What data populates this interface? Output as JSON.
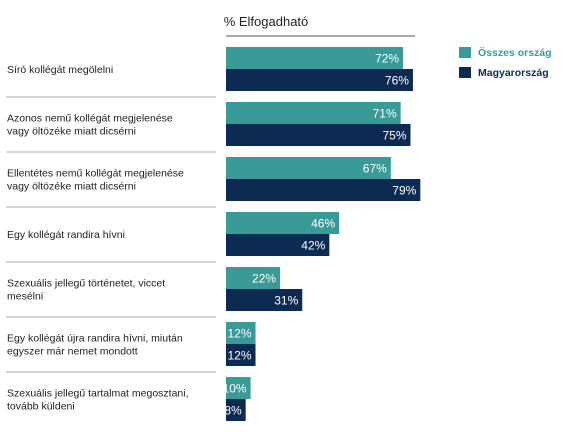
{
  "chart_data": {
    "type": "bar",
    "orientation": "horizontal",
    "title": "% Elfogadható",
    "categories": [
      [
        "Síró kollégát megölelni"
      ],
      [
        "Azonos nemű kollégát megjelenése",
        "vagy öltözéke miatt dicsérni"
      ],
      [
        "Ellentétes nemű kollégát megjelenése",
        "vagy öltözéke miatt dicsérni"
      ],
      [
        "Egy kollégát randira hívni"
      ],
      [
        "Szexuális jellegű történetet, viccet",
        "mesélni"
      ],
      [
        "Egy kollégát újra randira hívni, miután",
        "egyszer már nemet mondott"
      ],
      [
        "Szexuális jellegű tartalmat megosztani,",
        "tovább küldeni"
      ]
    ],
    "series": [
      {
        "name": "Összes ország",
        "color": "#3a9a98",
        "values": [
          72,
          71,
          67,
          46,
          22,
          12,
          10
        ]
      },
      {
        "name": "Magyarország",
        "color": "#0d2b52",
        "values": [
          76,
          75,
          79,
          42,
          31,
          12,
          8
        ]
      }
    ],
    "value_suffix": "%",
    "xlim": [
      0,
      100
    ],
    "grid": false,
    "legend_position": "top-right"
  }
}
